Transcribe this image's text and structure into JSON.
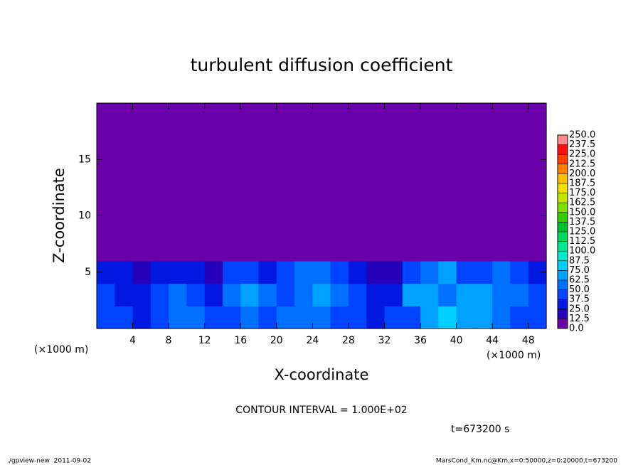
{
  "chart_data": {
    "type": "heatmap",
    "title": "turbulent diffusion coefficient",
    "x_label": "X-coordinate",
    "y_label": "Z-coordinate",
    "x_unit": "(×1000 m)",
    "y_unit": "(×1000 m)",
    "xlim": [
      0,
      50
    ],
    "ylim": [
      0,
      20
    ],
    "xticks": [
      4,
      8,
      12,
      16,
      20,
      24,
      28,
      32,
      36,
      40,
      44,
      48
    ],
    "yticks": [
      5,
      10,
      15
    ],
    "values": [
      [
        37.5,
        37.5,
        25,
        37.5,
        50,
        50,
        37.5,
        37.5,
        50,
        37.5,
        50,
        50,
        50,
        37.5,
        37.5,
        25,
        37.5,
        37.5,
        62.5,
        75,
        62.5,
        62.5,
        50,
        37.5,
        37.5
      ],
      [
        37.5,
        25,
        25,
        37.5,
        50,
        37.5,
        25,
        50,
        62.5,
        50,
        37.5,
        50,
        62.5,
        50,
        37.5,
        25,
        25,
        62.5,
        62.5,
        50,
        62.5,
        62.5,
        50,
        50,
        37.5
      ],
      [
        25,
        25,
        12.5,
        25,
        25,
        25,
        12.5,
        37.5,
        37.5,
        25,
        37.5,
        50,
        50,
        37.5,
        25,
        12.5,
        12.5,
        37.5,
        50,
        62.5,
        37.5,
        37.5,
        50,
        37.5,
        25
      ],
      [
        0,
        0,
        0,
        0,
        0,
        0,
        0,
        0,
        0,
        0,
        0,
        0,
        0,
        0,
        0,
        0,
        0,
        0,
        0,
        0,
        0,
        0,
        0,
        0,
        0
      ],
      [
        0,
        0,
        0,
        0,
        0,
        0,
        0,
        0,
        0,
        0,
        0,
        0,
        0,
        0,
        0,
        0,
        0,
        0,
        0,
        0,
        0,
        0,
        0,
        0,
        0
      ],
      [
        0,
        0,
        0,
        0,
        0,
        0,
        0,
        0,
        0,
        0,
        0,
        0,
        0,
        0,
        0,
        0,
        0,
        0,
        0,
        0,
        0,
        0,
        0,
        0,
        0
      ],
      [
        0,
        0,
        0,
        0,
        0,
        0,
        0,
        0,
        0,
        0,
        0,
        0,
        0,
        0,
        0,
        0,
        0,
        0,
        0,
        0,
        0,
        0,
        0,
        0,
        0
      ],
      [
        0,
        0,
        0,
        0,
        0,
        0,
        0,
        0,
        0,
        0,
        0,
        0,
        0,
        0,
        0,
        0,
        0,
        0,
        0,
        0,
        0,
        0,
        0,
        0,
        0
      ],
      [
        0,
        0,
        0,
        0,
        0,
        0,
        0,
        0,
        0,
        0,
        0,
        0,
        0,
        0,
        0,
        0,
        0,
        0,
        0,
        0,
        0,
        0,
        0,
        0,
        0
      ],
      [
        0,
        0,
        0,
        0,
        0,
        0,
        0,
        0,
        0,
        0,
        0,
        0,
        0,
        0,
        0,
        0,
        0,
        0,
        0,
        0,
        0,
        0,
        0,
        0,
        0
      ]
    ],
    "colorbar_ticks": [
      {
        "value": 0,
        "label": "0.0"
      },
      {
        "value": 12.5,
        "label": "12.5"
      },
      {
        "value": 25,
        "label": "25.0"
      },
      {
        "value": 37.5,
        "label": "37.5"
      },
      {
        "value": 50,
        "label": "50.0"
      },
      {
        "value": 62.5,
        "label": "62.5"
      },
      {
        "value": 75,
        "label": "75.0"
      },
      {
        "value": 87.5,
        "label": "87.5"
      },
      {
        "value": 100,
        "label": "100.0"
      },
      {
        "value": 112.5,
        "label": "112.5"
      },
      {
        "value": 125,
        "label": "125.0"
      },
      {
        "value": 137.5,
        "label": "137.5"
      },
      {
        "value": 150,
        "label": "150.0"
      },
      {
        "value": 162.5,
        "label": "162.5"
      },
      {
        "value": 175,
        "label": "175.0"
      },
      {
        "value": 187.5,
        "label": "187.5"
      },
      {
        "value": 200,
        "label": "200.0"
      },
      {
        "value": 212.5,
        "label": "212.5"
      },
      {
        "value": 225,
        "label": "225.0"
      },
      {
        "value": 237.5,
        "label": "237.5"
      },
      {
        "value": 250,
        "label": "250.0"
      }
    ],
    "colors": [
      "#6a00a8",
      "#2400b8",
      "#0018e0",
      "#0044ff",
      "#0070ff",
      "#00a0ff",
      "#00d0ff",
      "#00e8d0",
      "#00e890",
      "#00d860",
      "#00c030",
      "#30d000",
      "#80e000",
      "#c0e800",
      "#f0e000",
      "#ffc000",
      "#ff8000",
      "#ff4000",
      "#ff1010",
      "#ff8c8c"
    ],
    "annotations": [
      "CONTOUR INTERVAL = 1.000E+02",
      "t=673200 s"
    ],
    "footer_left": "./gpview-new  2011-09-02",
    "footer_right": "MarsCond_Km.nc@Km,x=0:50000,z=0:20000,t=673200"
  }
}
